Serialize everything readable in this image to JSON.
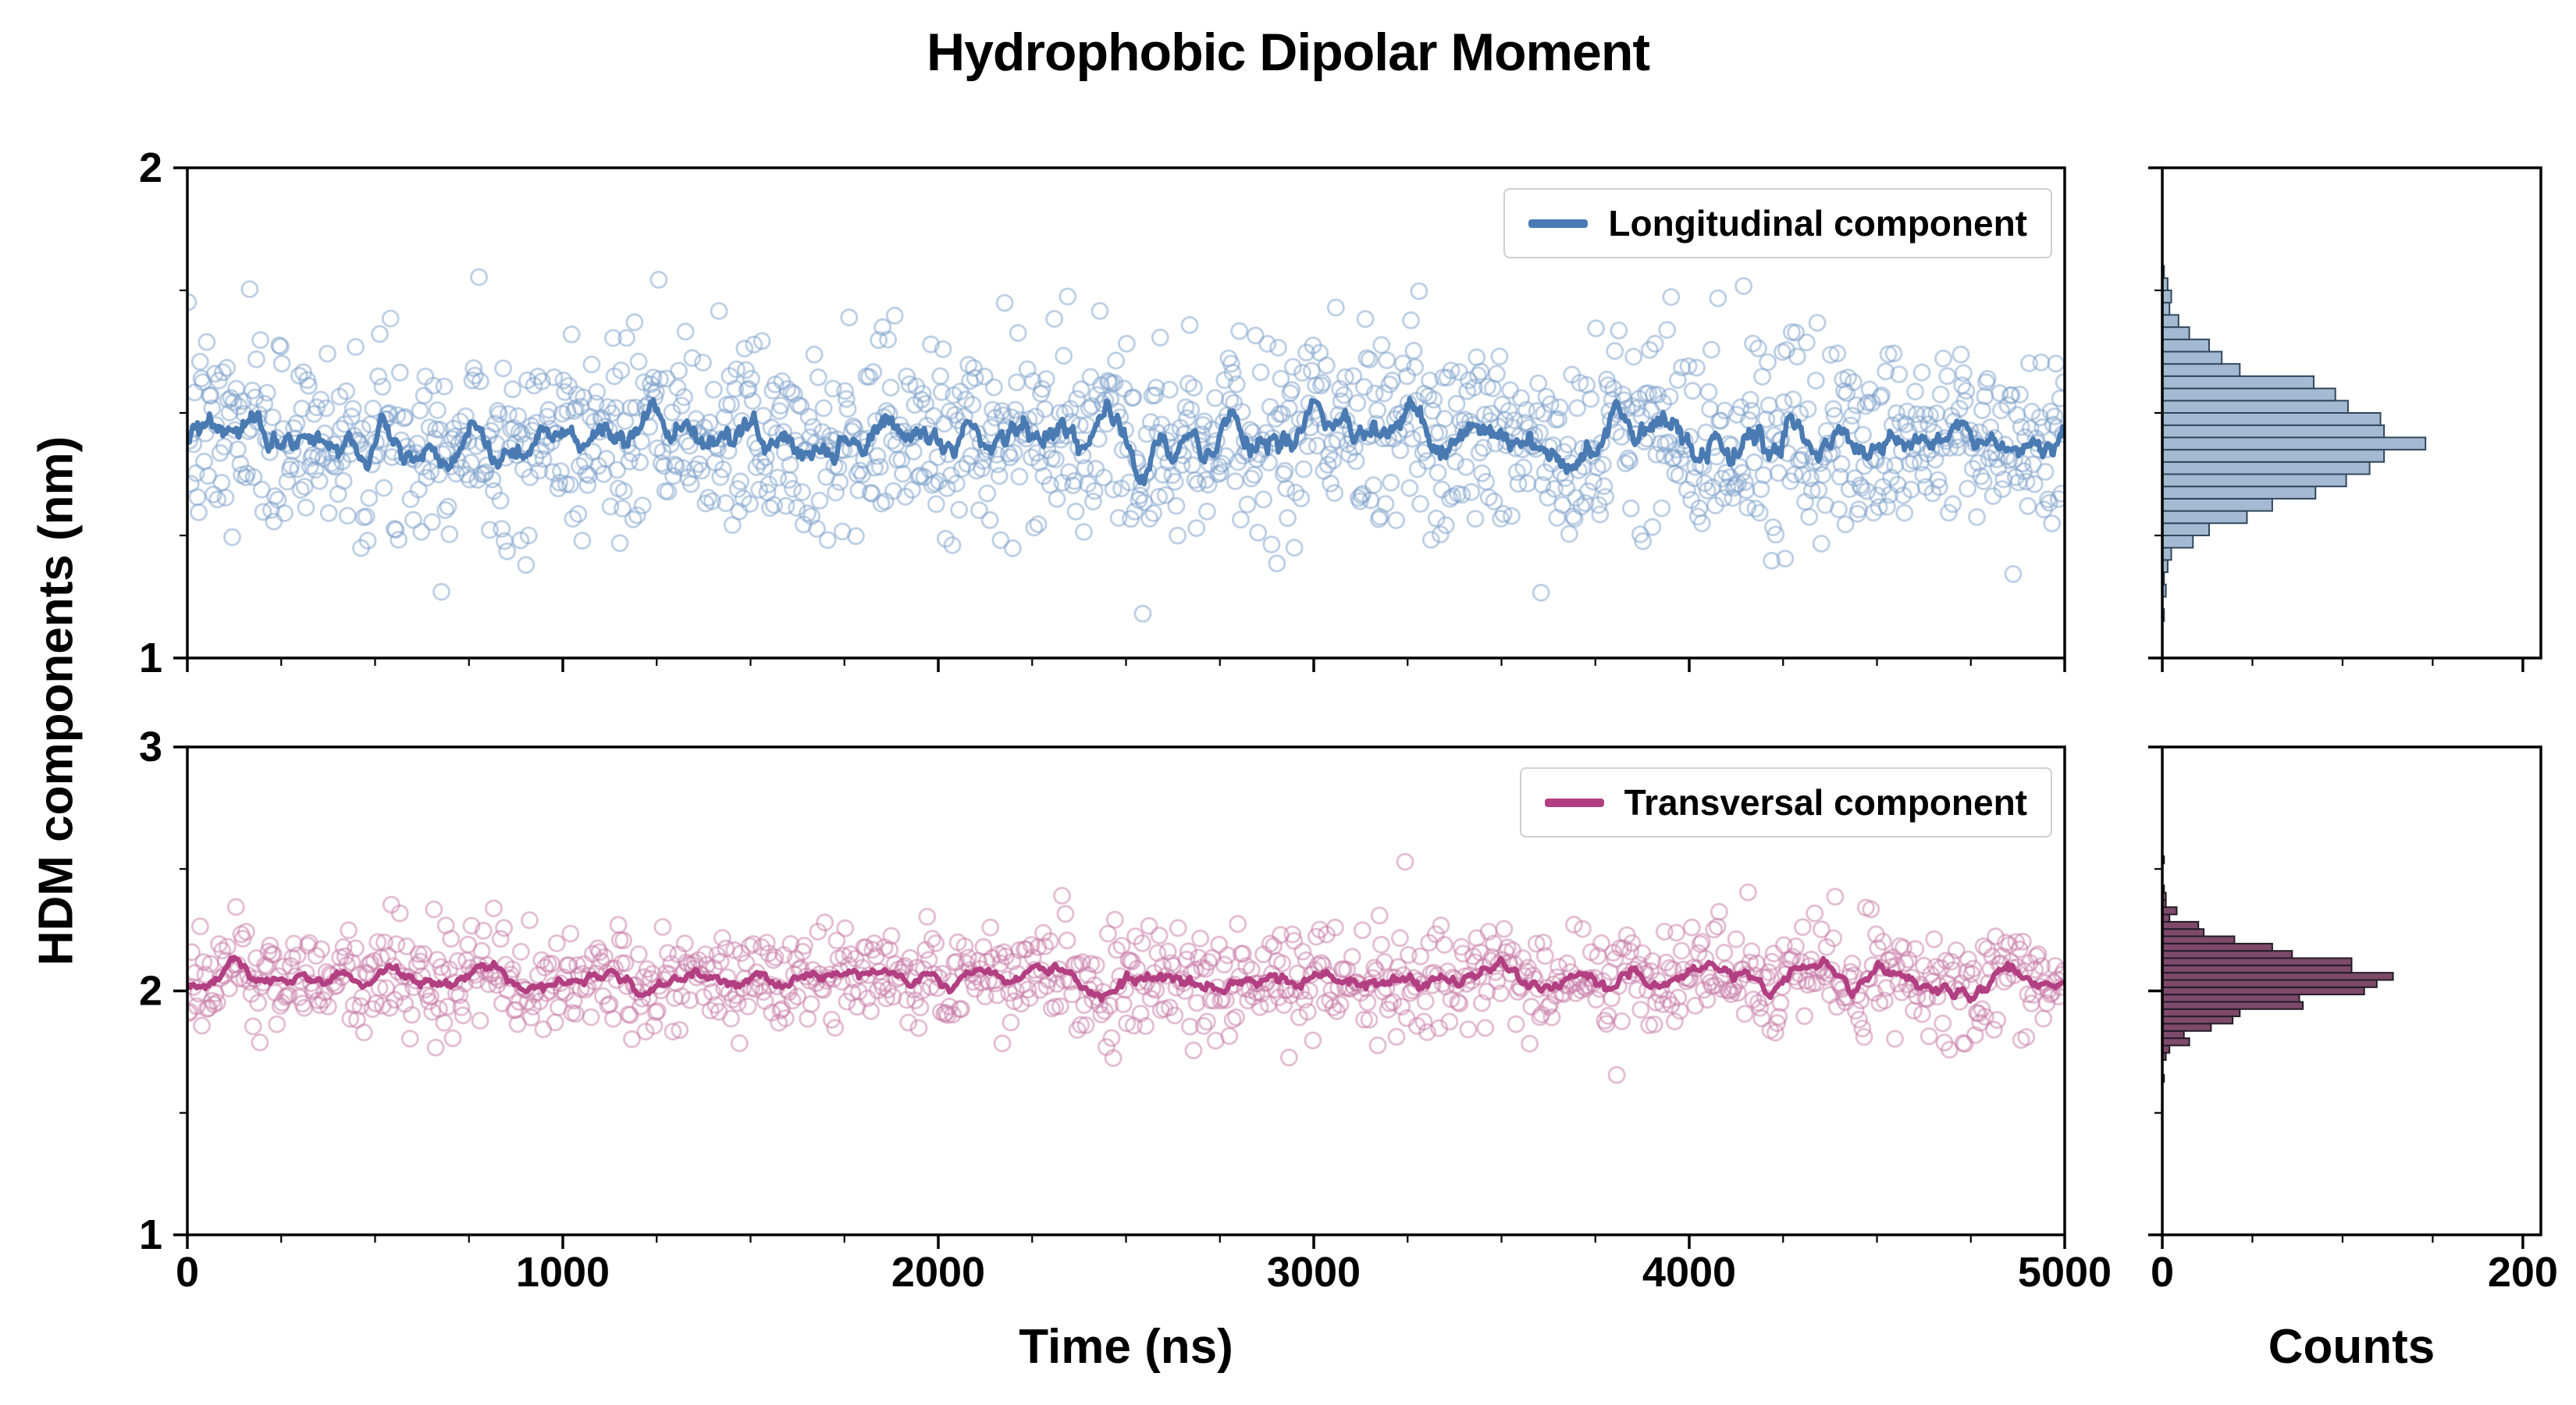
{
  "figure": {
    "title": "Hydrophobic Dipolar Moment",
    "ylabel": "HDM components (nm)",
    "xlabel_time": "Time (ns)",
    "xlabel_counts": "Counts"
  },
  "chart_data": [
    {
      "id": "longitudinal",
      "type": "scatter",
      "panel": "top-main",
      "legend": "Longitudinal component",
      "legend_loc": "upper right",
      "xlim": [
        0,
        5000
      ],
      "ylim": [
        1,
        2
      ],
      "x_ticks": [
        0,
        1000,
        2000,
        3000,
        4000,
        5000
      ],
      "x_minor_step": 250,
      "y_ticks": [
        1,
        2
      ],
      "y_minor_step": 0.25,
      "x_tick_labels": false,
      "y_tick_labels": true,
      "n_points": 1400,
      "mean": 1.45,
      "std": 0.1,
      "seed": 7,
      "overlay_line": "running mean, window 15",
      "scatter_color": "#7b9fc9",
      "line_color": "#4a7ab2"
    },
    {
      "id": "longitudinal-hist",
      "type": "bar",
      "panel": "top-hist",
      "source": "longitudinal",
      "orientation": "horizontal",
      "xlim": [
        0,
        210
      ],
      "x_ticks": [
        0,
        200
      ],
      "x_minor": [
        50,
        100,
        150
      ],
      "x_tick_labels": false,
      "bin_width": 0.025,
      "approx_peak_count": 140,
      "fill": "#a3bad2",
      "edge": "#33475c"
    },
    {
      "id": "transversal",
      "type": "scatter",
      "panel": "bot-main",
      "legend": "Transversal component",
      "legend_loc": "upper right",
      "xlim": [
        0,
        5000
      ],
      "ylim": [
        1,
        3
      ],
      "x_ticks": [
        0,
        1000,
        2000,
        3000,
        4000,
        5000
      ],
      "x_minor_step": 250,
      "y_ticks": [
        1,
        2,
        3
      ],
      "y_minor_step": 0.5,
      "x_tick_labels": true,
      "y_tick_labels": true,
      "n_points": 1100,
      "mean": 2.05,
      "std": 0.115,
      "seed": 21,
      "overlay_line": "running mean, window 15",
      "scatter_color": "#c77ba8",
      "line_color": "#b23f82"
    },
    {
      "id": "transversal-hist",
      "type": "bar",
      "panel": "bot-hist",
      "source": "transversal",
      "orientation": "horizontal",
      "xlim": [
        0,
        210
      ],
      "x_ticks": [
        0,
        200
      ],
      "x_minor": [
        50,
        100,
        150
      ],
      "x_tick_labels": true,
      "bin_width": 0.03,
      "approx_peak_count": 117,
      "fill": "#7d4a6a",
      "edge": "#241c26"
    }
  ]
}
